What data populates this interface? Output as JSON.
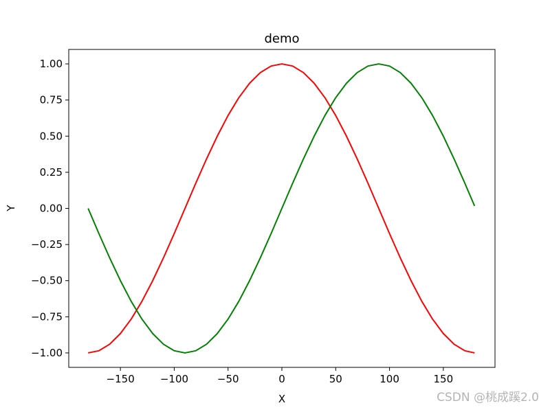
{
  "chart_data": {
    "type": "line",
    "title": "demo",
    "xlabel": "X",
    "ylabel": "Y",
    "xlim": [
      -198,
      198
    ],
    "ylim": [
      -1.1,
      1.1
    ],
    "x_ticks": [
      -150,
      -100,
      -50,
      0,
      50,
      100,
      150
    ],
    "x_tick_labels": [
      "−150",
      "−100",
      "−50",
      "0",
      "50",
      "100",
      "150"
    ],
    "y_ticks": [
      -1.0,
      -0.75,
      -0.5,
      -0.25,
      0.0,
      0.25,
      0.5,
      0.75,
      1.0
    ],
    "y_tick_labels": [
      "−1.00",
      "−0.75",
      "−0.50",
      "−0.25",
      "0.00",
      "0.25",
      "0.50",
      "0.75",
      "1.00"
    ],
    "grid": false,
    "x": [
      -180,
      -170,
      -160,
      -150,
      -140,
      -130,
      -120,
      -110,
      -100,
      -90,
      -80,
      -70,
      -60,
      -50,
      -40,
      -30,
      -20,
      -10,
      0,
      10,
      20,
      30,
      40,
      50,
      60,
      70,
      80,
      90,
      100,
      110,
      120,
      130,
      140,
      150,
      160,
      170,
      179
    ],
    "series": [
      {
        "color": "#ff0000",
        "values": [
          -1.0,
          -0.985,
          -0.94,
          -0.866,
          -0.766,
          -0.643,
          -0.5,
          -0.342,
          -0.174,
          0.0,
          0.174,
          0.342,
          0.5,
          0.643,
          0.766,
          0.866,
          0.94,
          0.985,
          1.0,
          0.985,
          0.94,
          0.866,
          0.766,
          0.643,
          0.5,
          0.342,
          0.174,
          0.0,
          -0.174,
          -0.342,
          -0.5,
          -0.643,
          -0.766,
          -0.866,
          -0.94,
          -0.985,
          -1.0
        ]
      },
      {
        "color": "#008000",
        "values": [
          0.0,
          -0.174,
          -0.342,
          -0.5,
          -0.643,
          -0.766,
          -0.866,
          -0.94,
          -0.985,
          -1.0,
          -0.985,
          -0.94,
          -0.866,
          -0.766,
          -0.643,
          -0.5,
          -0.342,
          -0.174,
          0.0,
          0.174,
          0.342,
          0.5,
          0.643,
          0.766,
          0.866,
          0.94,
          0.985,
          1.0,
          0.985,
          0.94,
          0.866,
          0.766,
          0.643,
          0.5,
          0.342,
          0.174,
          0.017
        ]
      }
    ]
  },
  "watermark": "CSDN @桃成蹊2.0"
}
